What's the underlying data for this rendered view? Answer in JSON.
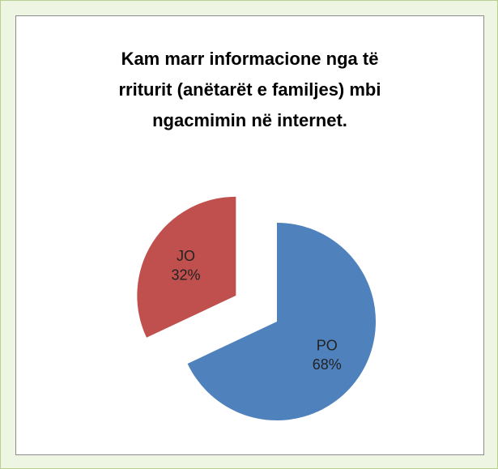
{
  "chart_data": {
    "type": "pie",
    "title": "Kam marr informacione nga të rriturit (anëtarët e familjes) mbi ngacmimin në internet.",
    "categories": [
      "PO",
      "JO"
    ],
    "values": [
      68,
      32
    ],
    "value_labels": [
      "68%",
      "32%"
    ],
    "colors": [
      "#4f81bd",
      "#c0504d"
    ]
  }
}
